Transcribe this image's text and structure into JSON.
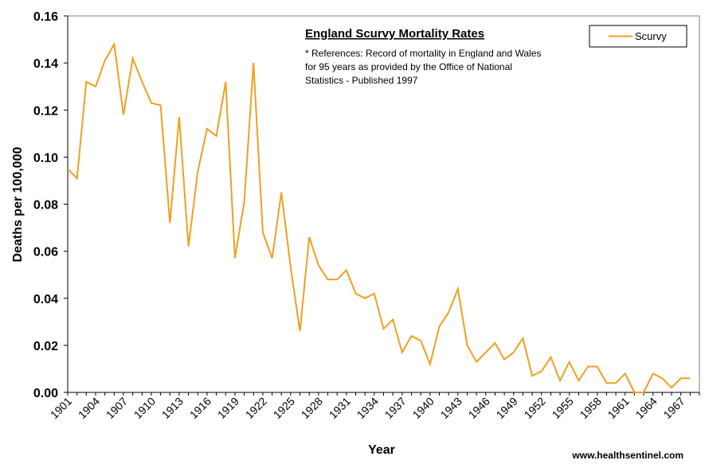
{
  "chart_data": {
    "type": "line",
    "title": "England Scurvy Mortality Rates",
    "annotation": [
      "* References: Record of mortality in England and Wales",
      "for 95 years as provided by the Office of National",
      "Statistics - Published 1997"
    ],
    "xlabel": "Year",
    "ylabel": "Deaths per 100,000",
    "ylim": [
      0,
      0.16
    ],
    "ytick_labels": [
      "0.00",
      "0.02",
      "0.04",
      "0.06",
      "0.08",
      "0.10",
      "0.12",
      "0.14",
      "0.16"
    ],
    "xtick_labels": [
      "1901",
      "1904",
      "1907",
      "1910",
      "1913",
      "1916",
      "1919",
      "1922",
      "1925",
      "1928",
      "1931",
      "1934",
      "1937",
      "1940",
      "1943",
      "1946",
      "1949",
      "1952",
      "1955",
      "1958",
      "1961",
      "1964",
      "1967"
    ],
    "x_start": 1901,
    "x_end": 1969,
    "legend_position": "top-right",
    "grid": false,
    "series": [
      {
        "name": "Scurvy",
        "color": "#F0A020",
        "x": [
          1901,
          1902,
          1903,
          1904,
          1905,
          1906,
          1907,
          1908,
          1909,
          1910,
          1911,
          1912,
          1913,
          1914,
          1915,
          1916,
          1917,
          1918,
          1919,
          1920,
          1921,
          1922,
          1923,
          1924,
          1925,
          1926,
          1927,
          1928,
          1929,
          1930,
          1931,
          1932,
          1933,
          1934,
          1935,
          1936,
          1937,
          1938,
          1939,
          1940,
          1941,
          1942,
          1943,
          1944,
          1945,
          1946,
          1947,
          1948,
          1949,
          1950,
          1951,
          1952,
          1953,
          1954,
          1955,
          1956,
          1957,
          1958,
          1959,
          1960,
          1961,
          1962,
          1963,
          1964,
          1965,
          1966,
          1967,
          1968
        ],
        "values": [
          0.095,
          0.091,
          0.132,
          0.13,
          0.141,
          0.148,
          0.118,
          0.142,
          0.132,
          0.123,
          0.122,
          0.072,
          0.117,
          0.062,
          0.094,
          0.112,
          0.109,
          0.132,
          0.057,
          0.081,
          0.14,
          0.068,
          0.057,
          0.085,
          0.053,
          0.026,
          0.066,
          0.054,
          0.048,
          0.048,
          0.052,
          0.042,
          0.04,
          0.042,
          0.027,
          0.031,
          0.017,
          0.024,
          0.022,
          0.012,
          0.028,
          0.034,
          0.044,
          0.02,
          0.013,
          0.017,
          0.021,
          0.014,
          0.017,
          0.023,
          0.007,
          0.009,
          0.015,
          0.005,
          0.013,
          0.005,
          0.011,
          0.011,
          0.004,
          0.004,
          0.008,
          0.0,
          0.0,
          0.008,
          0.006,
          0.002,
          0.006,
          0.006
        ]
      }
    ]
  },
  "credit": "www.healthsentinel.com"
}
